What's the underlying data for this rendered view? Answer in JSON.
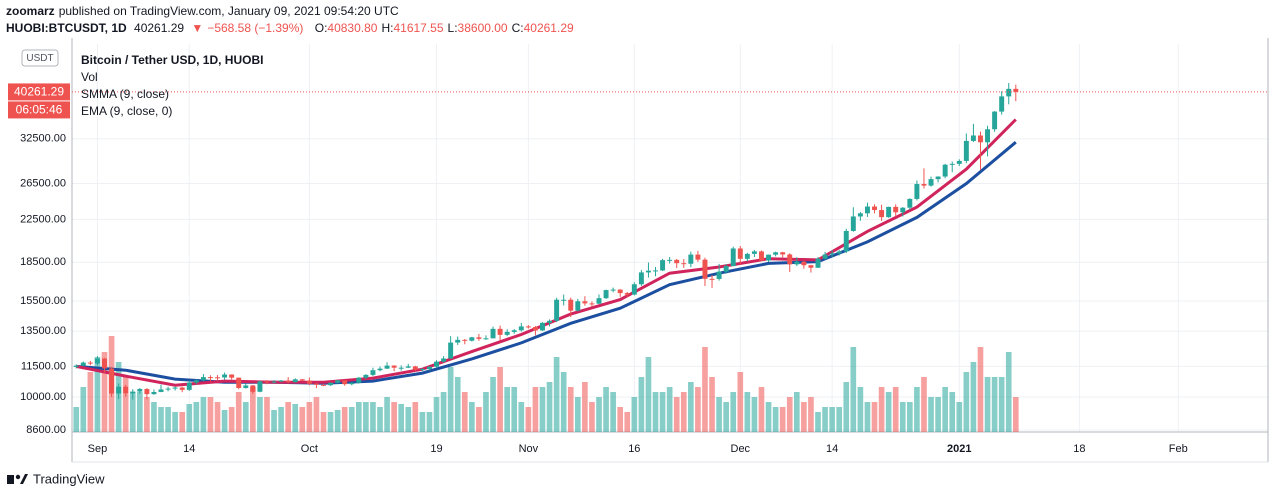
{
  "header": {
    "publisher": "zoomarz",
    "published": "published on TradingView.com, January 09, 2021 09:54:20 UTC",
    "symbol": "HUOBI:BTCUSDT, 1D",
    "last": "40261.29",
    "change": "−568.58 (−1.39%)",
    "ohlc": [
      {
        "label": "O:",
        "value": "40830.80"
      },
      {
        "label": "H:",
        "value": "41617.55"
      },
      {
        "label": "L:",
        "value": "38600.00"
      },
      {
        "label": "C:",
        "value": "40261.29"
      }
    ]
  },
  "footer": "TradingView",
  "chart_data": {
    "type": "candlestick",
    "legend": [
      "Bitcoin / Tether USD, 1D, HUOBI",
      "Vol",
      "SMMA (9, close)",
      "EMA (9, close, 0)"
    ],
    "currency": "USDT",
    "countdown": "06:05:46",
    "up_color": "#26a69a",
    "down_color": "#ef5350",
    "grid": true,
    "log_scale": true,
    "xlim": [
      -0.6,
      168.7
    ],
    "xticks": [
      {
        "value": 3,
        "label": "Sep"
      },
      {
        "value": 16,
        "label": "14"
      },
      {
        "value": 33,
        "label": "Oct"
      },
      {
        "value": 51,
        "label": "19"
      },
      {
        "value": 64,
        "label": "Nov"
      },
      {
        "value": 79,
        "label": "16"
      },
      {
        "value": 94,
        "label": "Dec"
      },
      {
        "value": 107,
        "label": "14"
      },
      {
        "value": 125,
        "label": "2021"
      },
      {
        "value": 142,
        "label": "18"
      },
      {
        "value": 156,
        "label": "Feb"
      }
    ],
    "ylim": [
      8522,
      50110
    ],
    "yticks": [
      {
        "value": 8600,
        "label": "8600.00"
      },
      {
        "value": 10000,
        "label": "10000.00"
      },
      {
        "value": 11500,
        "label": "11500.00"
      },
      {
        "value": 13500,
        "label": "13500.00"
      },
      {
        "value": 15500,
        "label": "15500.00"
      },
      {
        "value": 18500,
        "label": "18500.00"
      },
      {
        "value": 22500,
        "label": "22500.00"
      },
      {
        "value": 26500,
        "label": "26500.00"
      },
      {
        "value": 32500,
        "label": "32500.00"
      }
    ],
    "open": [
      11470,
      11540,
      11700,
      11650,
      11920,
      11390,
      10160,
      10480,
      10170,
      10250,
      10370,
      10130,
      10230,
      10350,
      10390,
      10440,
      10330,
      10680,
      10790,
      10950,
      10940,
      10930,
      11080,
      10920,
      10420,
      10540,
      10240,
      10740,
      10690,
      10730,
      10780,
      10700,
      10840,
      10780,
      10620,
      10570,
      10550,
      10670,
      10790,
      10600,
      10670,
      10920,
      11060,
      11300,
      11380,
      11540,
      11430,
      11430,
      11500,
      11320,
      11360,
      11480,
      11750,
      11920,
      12820,
      12980,
      12930,
      13130,
      13040,
      13070,
      13650,
      13280,
      13460,
      13560,
      13800,
      13760,
      13550,
      14030,
      14160,
      15590,
      15590,
      14830,
      15480,
      15330,
      15310,
      15700,
      16290,
      16330,
      16070,
      15960,
      16730,
      17660,
      17800,
      17820,
      18680,
      18700,
      18420,
      18370,
      19160,
      18720,
      17150,
      17140,
      17720,
      18180,
      19700,
      18790,
      19220,
      19440,
      18650,
      19150,
      19360,
      19170,
      18320,
      18550,
      18250,
      18040,
      18800,
      19170,
      19270,
      19430,
      21340,
      22800,
      23130,
      23860,
      23480,
      22730,
      23820,
      23240,
      23730,
      24700,
      26440,
      26250,
      27040,
      27360,
      28880,
      28990,
      29380,
      32190,
      33000,
      31990,
      33950,
      36800,
      39450,
      40830.8
    ],
    "high": [
      11600,
      11760,
      11790,
      12050,
      11950,
      11460,
      10640,
      10570,
      10360,
      10420,
      10410,
      10350,
      10580,
      10480,
      10490,
      10480,
      10780,
      10840,
      11100,
      11040,
      11050,
      11180,
      11090,
      10930,
      10640,
      10560,
      10770,
      10800,
      10800,
      10810,
      10950,
      10890,
      10860,
      10930,
      10660,
      10610,
      10690,
      10800,
      10800,
      10700,
      10950,
      11100,
      11430,
      11490,
      11720,
      11560,
      11550,
      11630,
      11530,
      11410,
      11500,
      11830,
      12050,
      13200,
      13180,
      13030,
      13160,
      13340,
      13250,
      13790,
      13850,
      13620,
      13640,
      14020,
      13880,
      13830,
      14070,
      14250,
      15730,
      15960,
      15740,
      15650,
      15840,
      15470,
      15970,
      16330,
      16480,
      16360,
      16150,
      16880,
      17860,
      18480,
      18110,
      18790,
      18950,
      18780,
      18770,
      19420,
      19490,
      18890,
      17450,
      18360,
      18350,
      19860,
      19920,
      19310,
      19560,
      19520,
      19160,
      19420,
      19400,
      19280,
      18930,
      18630,
      18280,
      18950,
      19410,
      19570,
      19570,
      21560,
      23780,
      23270,
      24290,
      24110,
      24060,
      23840,
      24100,
      23790,
      24780,
      26870,
      28400,
      27360,
      27390,
      29000,
      29300,
      29600,
      33300,
      34800,
      33600,
      34500,
      36900,
      40380,
      41940,
      41617.55
    ],
    "low": [
      11390,
      11500,
      11560,
      11570,
      11180,
      10000,
      9900,
      10010,
      9880,
      10140,
      9890,
      10100,
      10220,
      10260,
      10300,
      10220,
      10280,
      10580,
      10750,
      10730,
      10800,
      10820,
      10820,
      10360,
      10390,
      10140,
      10220,
      10600,
      10640,
      10700,
      10640,
      10680,
      10750,
      10550,
      10410,
      10510,
      10520,
      10630,
      10530,
      10550,
      10630,
      10840,
      11000,
      11240,
      11370,
      11250,
      11280,
      11410,
      11230,
      11260,
      11280,
      11420,
      11700,
      11900,
      12680,
      12720,
      12880,
      12920,
      12980,
      13060,
      12940,
      13200,
      13350,
      13480,
      13670,
      13250,
      13520,
      13800,
      14070,
      15190,
      14400,
      14780,
      15170,
      15100,
      15290,
      15640,
      16130,
      15790,
      15780,
      15900,
      16600,
      17250,
      17350,
      17770,
      18390,
      18010,
      18030,
      18080,
      18530,
      16600,
      16450,
      17010,
      17550,
      18170,
      18340,
      18570,
      18950,
      18590,
      18520,
      19000,
      18920,
      17700,
      18180,
      17960,
      17650,
      18030,
      18730,
      18940,
      19080,
      19290,
      21260,
      22360,
      22750,
      23130,
      22340,
      22660,
      22800,
      22800,
      23500,
      24530,
      25900,
      26120,
      26630,
      27140,
      27900,
      28710,
      29070,
      32030,
      28200,
      30000,
      33550,
      36300,
      38050,
      38600
    ],
    "close": [
      11540,
      11700,
      11650,
      11920,
      11390,
      10160,
      10480,
      10170,
      10250,
      10370,
      10130,
      10230,
      10350,
      10390,
      10440,
      10330,
      10680,
      10790,
      10950,
      10940,
      10930,
      11080,
      10920,
      10420,
      10540,
      10240,
      10740,
      10690,
      10730,
      10780,
      10700,
      10840,
      10780,
      10620,
      10570,
      10550,
      10670,
      10790,
      10600,
      10670,
      10920,
      11060,
      11300,
      11380,
      11540,
      11430,
      11430,
      11500,
      11320,
      11360,
      11480,
      11750,
      11920,
      12820,
      12980,
      12930,
      13130,
      13040,
      13070,
      13650,
      13280,
      13460,
      13560,
      13800,
      13760,
      13550,
      14030,
      14160,
      15590,
      15590,
      14830,
      15480,
      15330,
      15310,
      15700,
      16290,
      16330,
      16070,
      15960,
      16730,
      17660,
      17800,
      17820,
      18680,
      18700,
      18420,
      18370,
      19160,
      18720,
      17150,
      17140,
      17720,
      18180,
      19700,
      18790,
      19220,
      19440,
      18650,
      19150,
      19360,
      19170,
      18320,
      18550,
      18250,
      18040,
      18800,
      19170,
      19270,
      19430,
      21340,
      22800,
      23130,
      23860,
      23480,
      22730,
      23820,
      23240,
      23730,
      24700,
      26440,
      26250,
      27040,
      27360,
      28880,
      28990,
      29380,
      32190,
      33000,
      31990,
      33950,
      36800,
      39450,
      40830.8,
      40261.29
    ],
    "volume": [
      25,
      45,
      60,
      75,
      80,
      96,
      70,
      55,
      40,
      40,
      35,
      30,
      25,
      25,
      20,
      20,
      28,
      30,
      35,
      35,
      30,
      22,
      25,
      40,
      30,
      45,
      35,
      35,
      22,
      25,
      30,
      28,
      25,
      30,
      35,
      20,
      20,
      22,
      25,
      25,
      30,
      30,
      30,
      25,
      35,
      30,
      28,
      25,
      30,
      20,
      20,
      35,
      40,
      65,
      55,
      40,
      30,
      25,
      40,
      55,
      65,
      45,
      45,
      30,
      25,
      45,
      45,
      50,
      75,
      60,
      45,
      35,
      50,
      30,
      35,
      45,
      40,
      25,
      20,
      35,
      55,
      75,
      40,
      40,
      45,
      35,
      40,
      50,
      45,
      85,
      55,
      35,
      30,
      40,
      60,
      40,
      35,
      45,
      30,
      25,
      25,
      35,
      40,
      30,
      35,
      20,
      25,
      25,
      25,
      50,
      85,
      45,
      30,
      30,
      45,
      40,
      45,
      30,
      30,
      45,
      55,
      35,
      35,
      45,
      40,
      30,
      60,
      70,
      85,
      55,
      55,
      55,
      80,
      35
    ],
    "ma_x": [
      0,
      7,
      14,
      21,
      28,
      35,
      42,
      49,
      56,
      63,
      70,
      77,
      84,
      91,
      98,
      105,
      112,
      119,
      126,
      133
    ],
    "series": [
      {
        "name": "SMMA (9, close)",
        "color": "#1c4fa0",
        "values": [
          11500,
          11300,
          10850,
          10700,
          10700,
          10650,
          10750,
          11150,
          11900,
          12800,
          14000,
          15000,
          16700,
          17600,
          18400,
          18550,
          20300,
          22700,
          26500,
          32000
        ]
      },
      {
        "name": "EMA (9, close, 0)",
        "color": "#d0245c",
        "values": [
          11500,
          11000,
          10550,
          10750,
          10700,
          10700,
          10900,
          11350,
          12300,
          13300,
          14600,
          15600,
          17600,
          18100,
          18800,
          18700,
          21300,
          23800,
          28300,
          35500
        ]
      }
    ]
  }
}
